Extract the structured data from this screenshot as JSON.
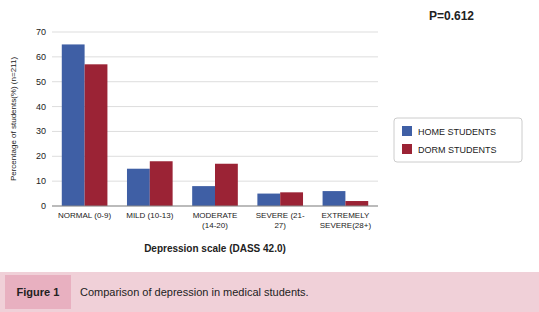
{
  "chart_data": {
    "type": "bar",
    "categories": [
      "NORMAL (0-9)",
      "MILD (10-13)",
      "MODERATE\n(14-20)",
      "SEVERE (21-\n27)",
      "EXTREMELY\nSEVERE(28+)"
    ],
    "series": [
      {
        "name": "HOME STUDENTS",
        "color": "#3f5fa5",
        "values": [
          65,
          15,
          8,
          5,
          6
        ]
      },
      {
        "name": "DORM STUDENTS",
        "color": "#9b2335",
        "values": [
          57,
          18,
          17,
          5.5,
          2
        ]
      }
    ],
    "xlabel": "Depression scale (DASS 42.0)",
    "ylabel": "Percentage of students(%) (n=211)",
    "ylim": [
      0,
      70
    ],
    "yticks": [
      0,
      10,
      20,
      30,
      40,
      50,
      60,
      70
    ],
    "grid": true,
    "legend": "right",
    "annotations": [
      "P=0.612",
      "Figure 1",
      "Comparison of depression in medical students."
    ]
  }
}
